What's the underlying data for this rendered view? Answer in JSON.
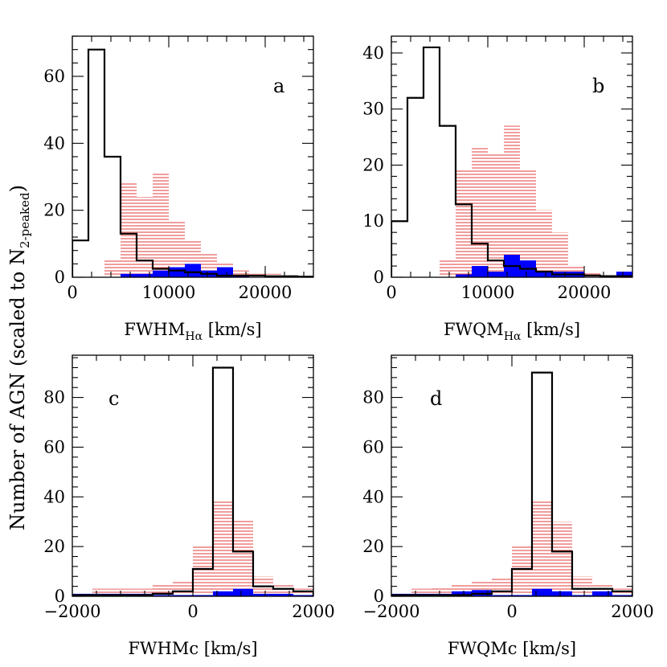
{
  "y_axis_label": "Number of AGN (scaled to N",
  "y_axis_label_sub": "2-peaked",
  "y_axis_label_end": ")",
  "colors": {
    "black_hist": "#000000",
    "red_hatch": "#e23b3b",
    "blue_fill": "#0000ff",
    "axes": "#000000"
  },
  "chart_data": [
    {
      "type": "bar",
      "panel_label": "a",
      "xlabel": "FWHM",
      "xlabel_sub": "Hα",
      "xlabel_unit": " [km/s]",
      "xlim": [
        0,
        25000
      ],
      "ylim": [
        0,
        72
      ],
      "xticks": [
        0,
        10000,
        20000
      ],
      "xticks_labels": [
        "0",
        "10000",
        "20000"
      ],
      "yticks": [
        0,
        20,
        40,
        60
      ],
      "yticks_labels": [
        "0",
        "20",
        "40",
        "60"
      ],
      "bin_width": 1666.7,
      "bin_start": 0,
      "series": [
        {
          "style": "step-black",
          "values": [
            11,
            68,
            36,
            13,
            5,
            2.5,
            2,
            1.5,
            1,
            0.5,
            0.5,
            0.5,
            0.3,
            0.3,
            0.2
          ]
        },
        {
          "style": "hatch-red",
          "values": [
            0,
            0,
            5,
            28,
            24,
            31,
            17,
            11,
            7,
            4,
            2,
            1,
            1,
            0,
            0
          ]
        },
        {
          "style": "fill-blue",
          "values": [
            0,
            0,
            0,
            1,
            1,
            2,
            3,
            4,
            2,
            3,
            0.5,
            0,
            0,
            0,
            0
          ]
        }
      ]
    },
    {
      "type": "bar",
      "panel_label": "b",
      "xlabel": "FWQM",
      "xlabel_sub": "Hα",
      "xlabel_unit": " [km/s]",
      "xlim": [
        0,
        25000
      ],
      "ylim": [
        0,
        43
      ],
      "xticks": [
        0,
        10000,
        20000
      ],
      "xticks_labels": [
        "0",
        "10000",
        "20000"
      ],
      "yticks": [
        0,
        10,
        20,
        30,
        40
      ],
      "yticks_labels": [
        "0",
        "10",
        "20",
        "30",
        "40"
      ],
      "bin_width": 1666.7,
      "bin_start": 0,
      "series": [
        {
          "style": "step-black",
          "values": [
            10,
            32,
            41,
            27,
            13,
            6,
            3,
            2,
            1.5,
            1,
            0.5,
            0.5,
            0.3,
            0.2,
            0.2
          ]
        },
        {
          "style": "hatch-red",
          "values": [
            0,
            0,
            0,
            3,
            19,
            23,
            22,
            27,
            19,
            12,
            8,
            2,
            1,
            0,
            0
          ]
        },
        {
          "style": "fill-blue",
          "values": [
            0,
            0,
            0,
            0,
            0.5,
            2,
            1,
            4,
            3,
            1,
            1,
            1,
            0,
            0,
            1
          ]
        }
      ]
    },
    {
      "type": "bar",
      "panel_label": "c",
      "xlabel": "FWHMc",
      "xlabel_sub": "",
      "xlabel_unit": " [km/s]",
      "xlim": [
        -2000,
        2000
      ],
      "ylim": [
        0,
        97
      ],
      "xticks": [
        -2000,
        0,
        2000
      ],
      "xticks_labels": [
        "−2000",
        "0",
        "2000"
      ],
      "yticks": [
        0,
        20,
        40,
        60,
        80
      ],
      "yticks_labels": [
        "0",
        "20",
        "40",
        "60",
        "80"
      ],
      "bin_width": 333.3,
      "bin_start": -2000,
      "series": [
        {
          "style": "step-black",
          "values": [
            0.5,
            0.5,
            0.5,
            0.5,
            1,
            2,
            11,
            92,
            18,
            4,
            3,
            2,
            0.5
          ]
        },
        {
          "style": "hatch-red",
          "values": [
            1,
            3,
            3,
            3,
            5,
            6,
            20,
            38,
            31,
            8,
            5,
            3,
            0.5
          ]
        },
        {
          "style": "fill-blue",
          "values": [
            1,
            1,
            1,
            1,
            0.5,
            0.5,
            0.5,
            2,
            3,
            1,
            1,
            0.5,
            0
          ]
        }
      ]
    },
    {
      "type": "bar",
      "panel_label": "d",
      "xlabel": "FWQMc",
      "xlabel_sub": "",
      "xlabel_unit": " [km/s]",
      "xlim": [
        -2000,
        2000
      ],
      "ylim": [
        0,
        97
      ],
      "xticks": [
        -2000,
        0,
        2000
      ],
      "xticks_labels": [
        "−2000",
        "0",
        "2000"
      ],
      "yticks": [
        0,
        20,
        40,
        60,
        80
      ],
      "yticks_labels": [
        "0",
        "20",
        "40",
        "60",
        "80"
      ],
      "bin_width": 333.3,
      "bin_start": -2000,
      "series": [
        {
          "style": "step-black",
          "values": [
            0.5,
            0.5,
            0.5,
            0.5,
            1,
            2,
            11,
            90,
            18,
            3,
            3,
            2,
            0.5
          ]
        },
        {
          "style": "hatch-red",
          "values": [
            1,
            3,
            4,
            5,
            6,
            7,
            20,
            38,
            30,
            8,
            5,
            3,
            1
          ]
        },
        {
          "style": "fill-blue",
          "values": [
            1,
            1,
            1,
            2,
            2.5,
            0.5,
            0.5,
            3,
            2,
            0.5,
            2,
            0.5,
            0
          ]
        }
      ]
    }
  ]
}
